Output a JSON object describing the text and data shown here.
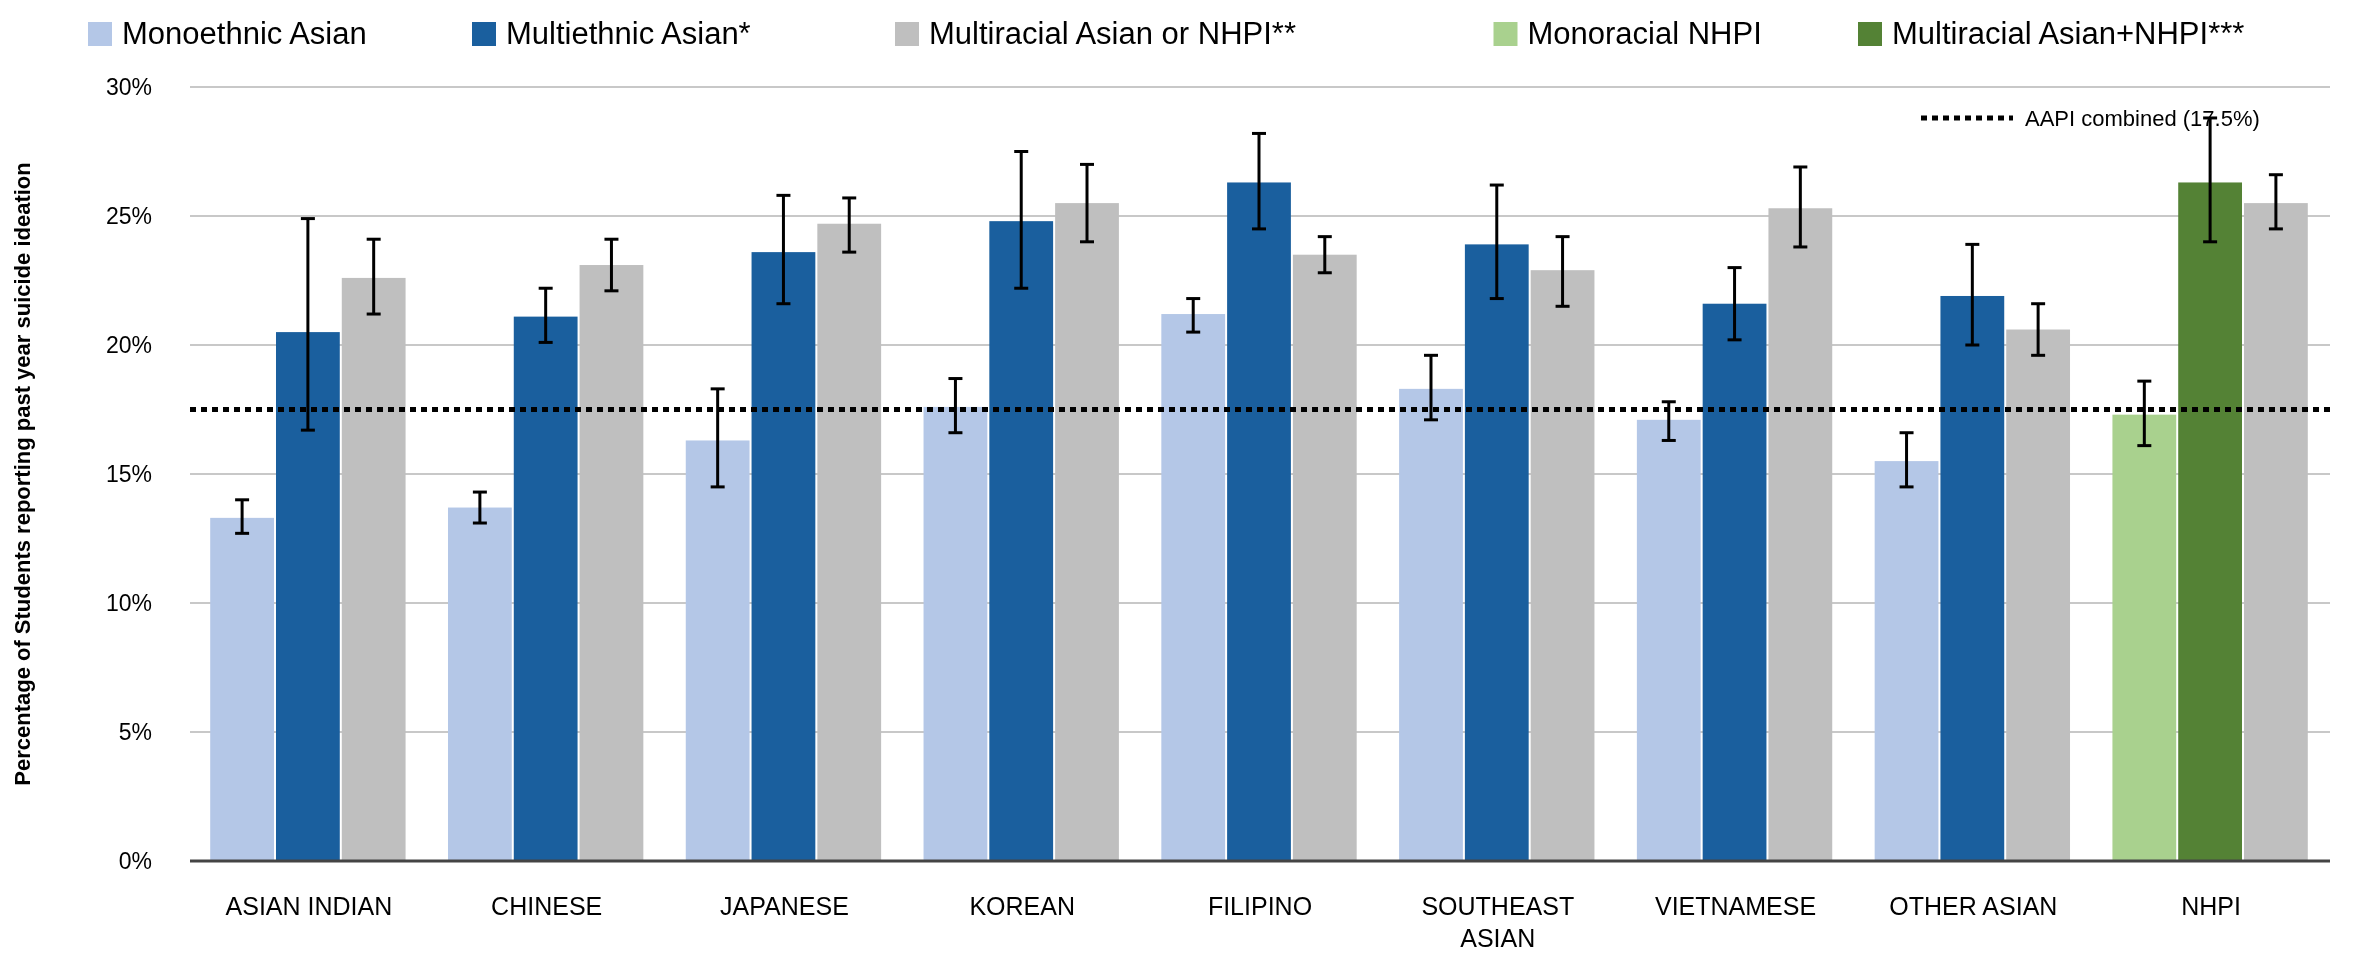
{
  "chart_data": {
    "type": "bar",
    "ylabel": "Percentage of Students reporting past year suicide ideation",
    "categories": [
      "ASIAN INDIAN",
      "CHINESE",
      "JAPANESE",
      "KOREAN",
      "FILIPINO",
      "SOUTHEAST ASIAN",
      "VIETNAMESE",
      "OTHER ASIAN",
      "NHPI"
    ],
    "series": [
      {
        "name": "Monoethnic Asian",
        "color": "#b4c7e7",
        "values": [
          13.3,
          13.7,
          16.3,
          17.6,
          21.2,
          18.3,
          17.1,
          15.5,
          null
        ],
        "errors": [
          [
            12.7,
            14.0
          ],
          [
            13.1,
            14.3
          ],
          [
            14.5,
            18.3
          ],
          [
            16.6,
            18.7
          ],
          [
            20.5,
            21.8
          ],
          [
            17.1,
            19.6
          ],
          [
            16.3,
            17.8
          ],
          [
            14.5,
            16.6
          ],
          null
        ]
      },
      {
        "name": "Multiethnic Asian*",
        "color": "#1a5f9e",
        "values": [
          20.5,
          21.1,
          23.6,
          24.8,
          26.3,
          23.9,
          21.6,
          21.9,
          null
        ],
        "errors": [
          [
            16.7,
            24.9
          ],
          [
            20.1,
            22.2
          ],
          [
            21.6,
            25.8
          ],
          [
            22.2,
            27.5
          ],
          [
            24.5,
            28.2
          ],
          [
            21.8,
            26.2
          ],
          [
            20.2,
            23.0
          ],
          [
            20.0,
            23.9
          ],
          null
        ]
      },
      {
        "name": "Multiracial Asian or NHPI**",
        "color": "#bfbfbf",
        "values": [
          22.6,
          23.1,
          24.7,
          25.5,
          23.5,
          22.9,
          25.3,
          20.6,
          25.5
        ],
        "errors": [
          [
            21.2,
            24.1
          ],
          [
            22.1,
            24.1
          ],
          [
            23.6,
            25.7
          ],
          [
            24.0,
            27.0
          ],
          [
            22.8,
            24.2
          ],
          [
            21.5,
            24.2
          ],
          [
            23.8,
            26.9
          ],
          [
            19.6,
            21.6
          ],
          [
            24.5,
            26.6
          ]
        ]
      },
      {
        "name": "Monoracial NHPI",
        "color": "#a9d18e",
        "values": [
          null,
          null,
          null,
          null,
          null,
          null,
          null,
          null,
          17.3
        ],
        "errors": [
          null,
          null,
          null,
          null,
          null,
          null,
          null,
          null,
          [
            16.1,
            18.6
          ]
        ]
      },
      {
        "name": "Multiracial Asian+NHPI***",
        "color": "#548235",
        "values": [
          null,
          null,
          null,
          null,
          null,
          null,
          null,
          null,
          26.3
        ],
        "errors": [
          null,
          null,
          null,
          null,
          null,
          null,
          null,
          null,
          [
            24.0,
            28.8
          ]
        ]
      }
    ],
    "ylim": [
      0,
      30
    ],
    "yticks": [
      {
        "value": 0,
        "label": "0%"
      },
      {
        "value": 5,
        "label": "5%"
      },
      {
        "value": 10,
        "label": "10%"
      },
      {
        "value": 15,
        "label": "15%"
      },
      {
        "value": 20,
        "label": "20%"
      },
      {
        "value": 25,
        "label": "25%"
      },
      {
        "value": 30,
        "label": "30%"
      }
    ],
    "grid": "y",
    "legend": "top",
    "ref_lines": [
      {
        "axis": "y",
        "value": 17.5,
        "label": "AAPI combined (17.5%)",
        "color": "#000000",
        "line_style": "dotted"
      }
    ]
  }
}
